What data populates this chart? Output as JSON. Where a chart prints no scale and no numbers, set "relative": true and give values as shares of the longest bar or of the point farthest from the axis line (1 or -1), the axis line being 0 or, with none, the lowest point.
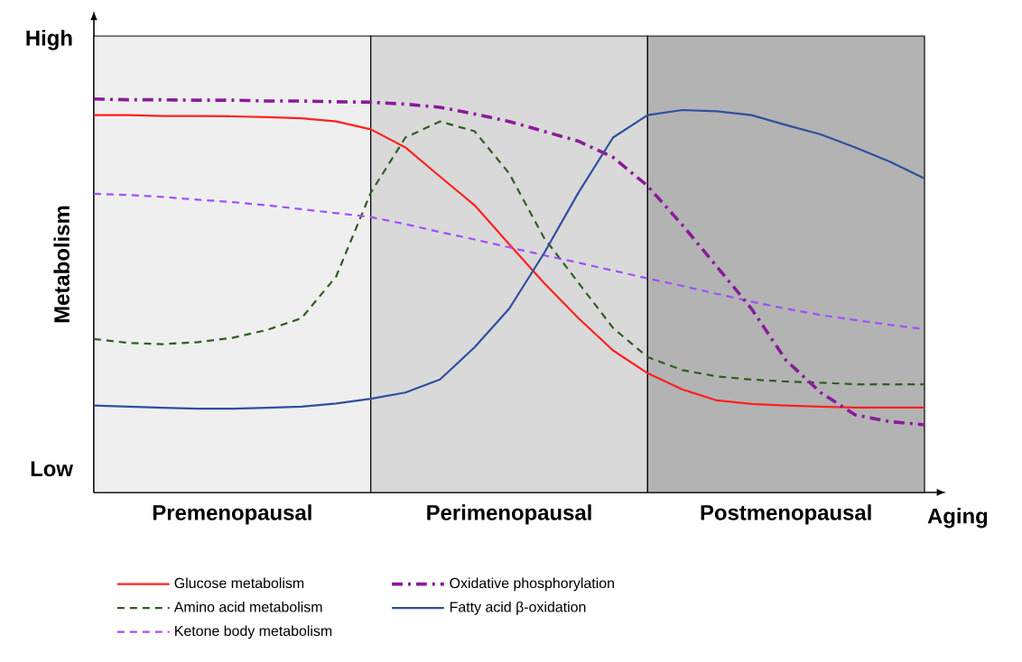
{
  "chart_data": {
    "type": "line",
    "relative": true,
    "xlabel": "Aging",
    "ylabel": "Metabolism",
    "legend": "bottom",
    "annotations": [
      "High",
      "Low"
    ],
    "categories": [
      null,
      null,
      null,
      null,
      "Premenopausal",
      null,
      null,
      null,
      null,
      null,
      null,
      null,
      "Perimenopausal",
      null,
      null,
      null,
      null,
      null,
      null,
      null,
      "Postmenopausal",
      null,
      null,
      null,
      null
    ],
    "series": [
      {
        "name": "Glucose metabolism",
        "color": "#ff2020",
        "line_style": "solid",
        "values": [
          0.959,
          0.959,
          0.957,
          0.957,
          0.956,
          0.954,
          0.951,
          0.943,
          0.923,
          0.877,
          0.803,
          0.73,
          0.631,
          0.533,
          0.443,
          0.361,
          0.303,
          0.262,
          0.234,
          0.225,
          0.221,
          0.218,
          0.216,
          0.216,
          0.216
        ]
      },
      {
        "name": "Amino acid metabolism",
        "color": "#2e5e1e",
        "line_style": "dashed",
        "values": [
          0.39,
          0.38,
          0.377,
          0.382,
          0.393,
          0.413,
          0.443,
          0.549,
          0.762,
          0.902,
          0.943,
          0.918,
          0.811,
          0.648,
          0.533,
          0.418,
          0.344,
          0.311,
          0.295,
          0.287,
          0.282,
          0.279,
          0.275,
          0.275,
          0.275
        ]
      },
      {
        "name": "Ketone body metabolism",
        "color": "#a050ff",
        "line_style": "dashed",
        "values": [
          0.759,
          0.756,
          0.751,
          0.744,
          0.738,
          0.73,
          0.72,
          0.71,
          0.7,
          0.682,
          0.662,
          0.643,
          0.623,
          0.603,
          0.584,
          0.564,
          0.544,
          0.525,
          0.505,
          0.485,
          0.467,
          0.451,
          0.438,
          0.426,
          0.415
        ]
      },
      {
        "name": "Oxidative phosphorylation",
        "color": "#8b1a9a",
        "line_style": "dashdot",
        "values": [
          1.0,
          0.998,
          0.998,
          0.997,
          0.997,
          0.995,
          0.995,
          0.993,
          0.992,
          0.987,
          0.979,
          0.962,
          0.943,
          0.918,
          0.893,
          0.852,
          0.779,
          0.68,
          0.574,
          0.467,
          0.336,
          0.254,
          0.197,
          0.18,
          0.172
        ]
      },
      {
        "name": "Fatty acid β-oxidation",
        "color": "#2f4f9f",
        "line_style": "solid",
        "values": [
          0.221,
          0.218,
          0.215,
          0.213,
          0.213,
          0.215,
          0.218,
          0.226,
          0.238,
          0.254,
          0.287,
          0.369,
          0.467,
          0.607,
          0.762,
          0.902,
          0.959,
          0.972,
          0.969,
          0.959,
          0.934,
          0.91,
          0.877,
          0.841,
          0.798
        ]
      }
    ]
  }
}
